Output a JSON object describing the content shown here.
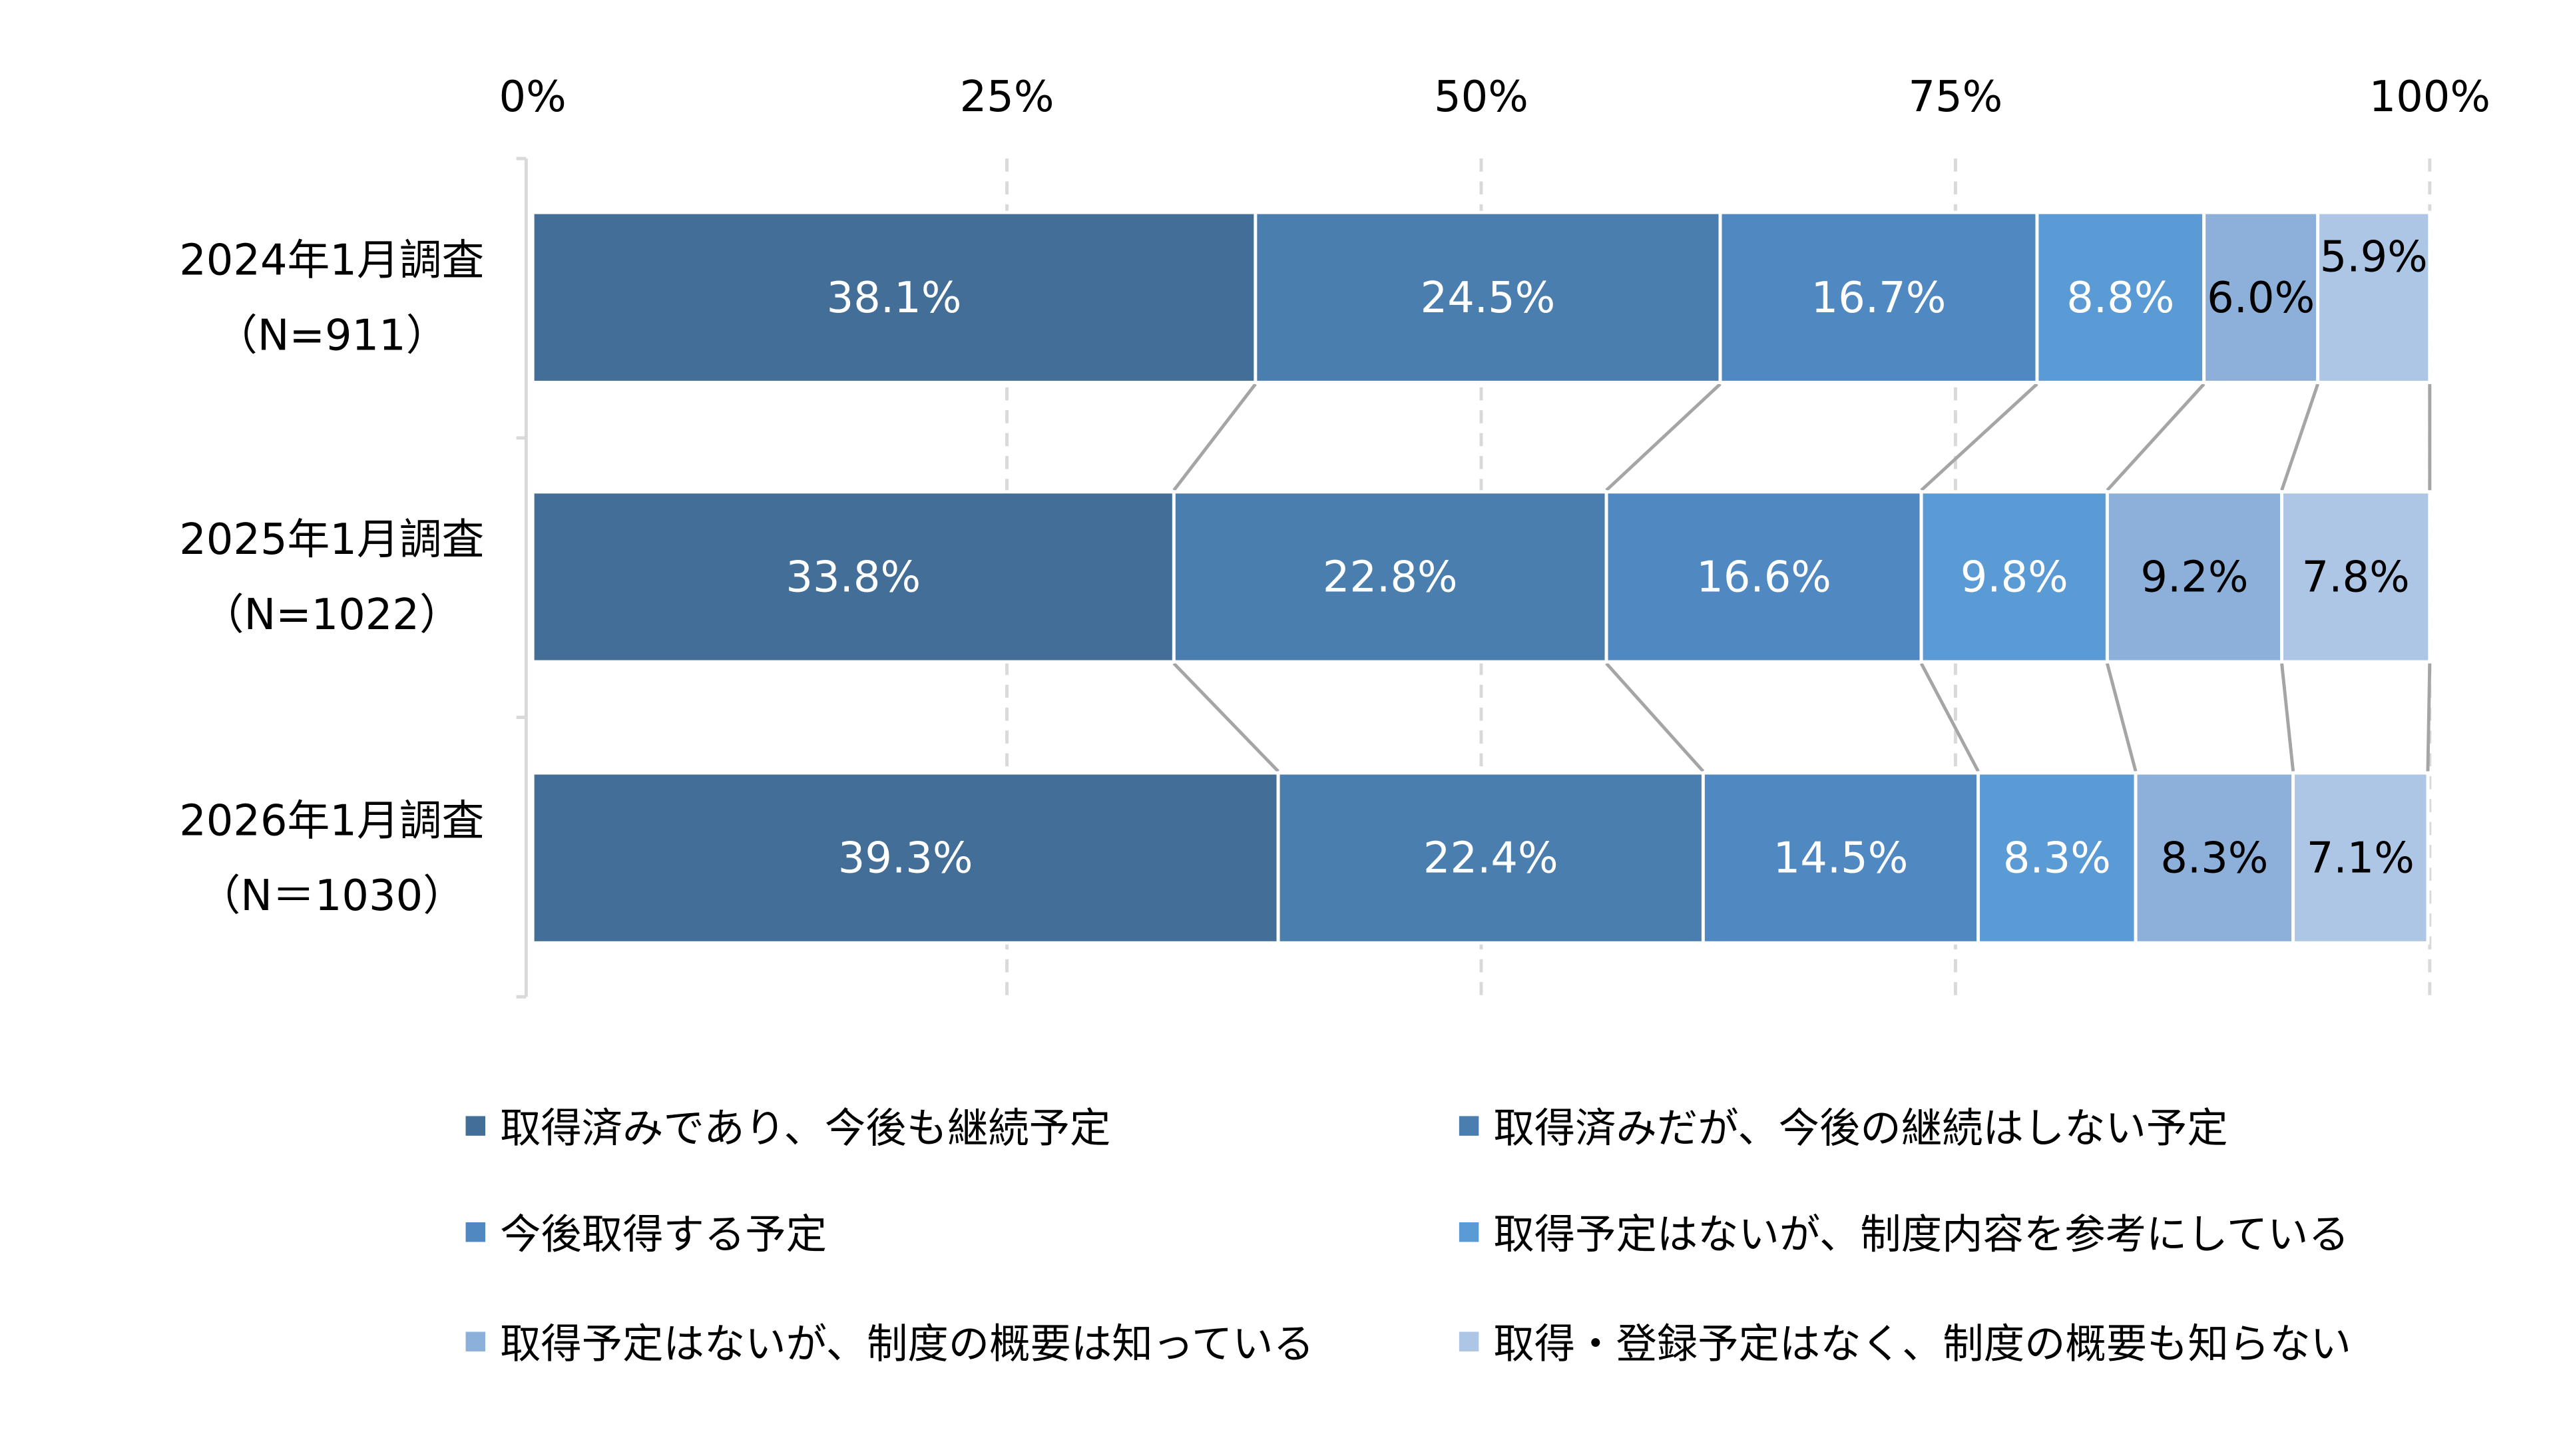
{
  "chart_data": {
    "type": "bar",
    "orientation": "horizontal",
    "stacked": true,
    "percent": true,
    "xlim": [
      0,
      100
    ],
    "x_ticks": [
      "0%",
      "25%",
      "50%",
      "75%",
      "100%"
    ],
    "x_tick_values": [
      0,
      25,
      50,
      75,
      100
    ],
    "grid": "vertical dashed",
    "legend_position": "bottom",
    "series_lines": true,
    "categories": [
      {
        "label": "2024年1月調査",
        "sub": "（N=911）"
      },
      {
        "label": "2025年1月調査",
        "sub": "（N=1022）"
      },
      {
        "label": "2026年1月調査",
        "sub": "（N＝1030）"
      }
    ],
    "series": [
      {
        "name": "取得済みであり、今後も継続予定",
        "color": "#426E97",
        "label_color": "#FFFFFF",
        "values": [
          38.1,
          33.8,
          39.3
        ]
      },
      {
        "name": "取得済みだが、今後の継続はしない予定",
        "color": "#4A7EAF",
        "label_color": "#FFFFFF",
        "values": [
          24.5,
          22.8,
          22.4
        ]
      },
      {
        "name": "今後取得する予定",
        "color": "#5089C2",
        "label_color": "#FFFFFF",
        "values": [
          16.7,
          16.6,
          14.5
        ]
      },
      {
        "name": "取得予定はないが、制度内容を参考にしている",
        "color": "#5B9BD5",
        "label_color": "#FFFFFF",
        "values": [
          8.8,
          9.8,
          8.3
        ]
      },
      {
        "name": "取得予定はないが、制度の概要は知っている",
        "color": "#8DB0DA",
        "label_color": "#000000",
        "values": [
          6.0,
          9.2,
          8.3
        ]
      },
      {
        "name": "取得・登録予定はなく、制度の概要も知らない",
        "color": "#ADC6E5",
        "label_color": "#000000",
        "values": [
          5.9,
          7.8,
          7.1
        ]
      }
    ],
    "data_labels": [
      [
        "38.1%",
        "24.5%",
        "16.7%",
        "8.8%",
        "6.0%",
        "5.9%"
      ],
      [
        "33.8%",
        "22.8%",
        "16.6%",
        "9.8%",
        "9.2%",
        "7.8%"
      ],
      [
        "39.3%",
        "22.4%",
        "14.5%",
        "8.3%",
        "8.3%",
        "7.1%"
      ]
    ]
  }
}
